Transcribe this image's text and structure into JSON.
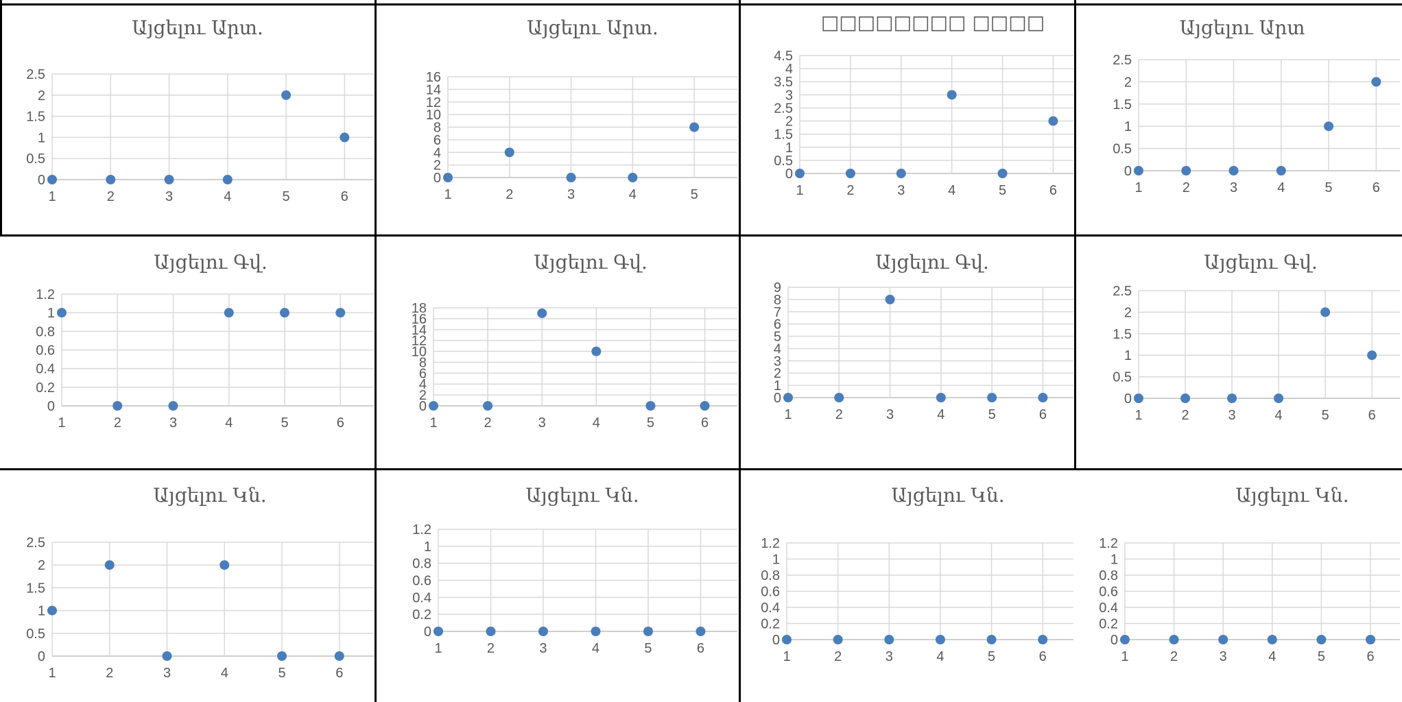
{
  "style": {
    "point_color": "#4a7ebb",
    "grid_color": "#d9d9d9",
    "axis_color": "#bfbfbf",
    "tick_text_color": "#595959",
    "title_color": "#595959",
    "border_color": "#000000"
  },
  "chart_data": [
    {
      "type": "scatter",
      "title": "Այցելու Արտ.",
      "x": [
        1,
        2,
        3,
        4,
        5,
        6
      ],
      "y": [
        0,
        0,
        0,
        0,
        2,
        1
      ],
      "xlabel": "",
      "ylabel": "",
      "xlim": [
        1,
        6.5
      ],
      "ylim": [
        0,
        2.5
      ],
      "yticks": [
        "0",
        "0.5",
        "1",
        "1.5",
        "2",
        "2.5"
      ],
      "xticks": [
        "1",
        "2",
        "3",
        "4",
        "5",
        "6"
      ],
      "grid": true
    },
    {
      "type": "scatter",
      "title": "Այցելու Արտ.",
      "x": [
        1,
        2,
        3,
        4,
        5
      ],
      "y": [
        0,
        4,
        0,
        0,
        8
      ],
      "xlabel": "",
      "ylabel": "",
      "xlim": [
        1,
        5.7
      ],
      "ylim": [
        0,
        16
      ],
      "yticks": [
        "0",
        "2",
        "4",
        "6",
        "8",
        "10",
        "12",
        "14",
        "16"
      ],
      "xticks": [
        "1",
        "2",
        "3",
        "4",
        "5"
      ],
      "grid": true
    },
    {
      "type": "scatter",
      "title": "□□□□□□□□ □□□□",
      "x": [
        1,
        2,
        3,
        4,
        5,
        6
      ],
      "y": [
        0,
        0,
        0,
        3,
        0,
        2
      ],
      "xlabel": "",
      "ylabel": "",
      "xlim": [
        1,
        6.4
      ],
      "ylim": [
        0,
        4.5
      ],
      "yticks": [
        "0",
        "0.5",
        "1",
        "1.5",
        "2",
        "2.5",
        "3",
        "3.5",
        "4",
        "4.5"
      ],
      "xticks": [
        "1",
        "2",
        "3",
        "4",
        "5",
        "6"
      ],
      "grid": true
    },
    {
      "type": "scatter",
      "title": "Այցելու Արտ",
      "x": [
        1,
        2,
        3,
        4,
        5,
        6
      ],
      "y": [
        0,
        0,
        0,
        0,
        1,
        2
      ],
      "xlabel": "",
      "ylabel": "",
      "xlim": [
        1,
        6.5
      ],
      "ylim": [
        0,
        2.5
      ],
      "yticks": [
        "0",
        "0.5",
        "1",
        "1.5",
        "2",
        "2.5"
      ],
      "xticks": [
        "1",
        "2",
        "3",
        "4",
        "5",
        "6"
      ],
      "grid": true
    },
    {
      "type": "scatter",
      "title": "Այցելու Գվ.",
      "x": [
        1,
        2,
        3,
        4,
        5,
        6
      ],
      "y": [
        1,
        0,
        0,
        1,
        1,
        1
      ],
      "xlabel": "",
      "ylabel": "",
      "xlim": [
        1,
        6.6
      ],
      "ylim": [
        0,
        1.2
      ],
      "yticks": [
        "0",
        "0.2",
        "0.4",
        "0.6",
        "0.8",
        "1",
        "1.2"
      ],
      "xticks": [
        "1",
        "2",
        "3",
        "4",
        "5",
        "6"
      ],
      "grid": true
    },
    {
      "type": "scatter",
      "title": "Այցելու Գվ.",
      "x": [
        1,
        2,
        3,
        4,
        5,
        6
      ],
      "y": [
        0,
        0,
        17,
        10,
        0,
        0
      ],
      "xlabel": "",
      "ylabel": "",
      "xlim": [
        1,
        6.6
      ],
      "ylim": [
        0,
        18
      ],
      "yticks": [
        "0",
        "2",
        "4",
        "6",
        "8",
        "10",
        "12",
        "14",
        "16",
        "18"
      ],
      "xticks": [
        "1",
        "2",
        "3",
        "4",
        "5",
        "6"
      ],
      "grid": true
    },
    {
      "type": "scatter",
      "title": "Այցելու Գվ.",
      "x": [
        1,
        2,
        3,
        4,
        5,
        6
      ],
      "y": [
        0,
        0,
        8,
        0,
        0,
        0
      ],
      "xlabel": "",
      "ylabel": "",
      "xlim": [
        1,
        6.6
      ],
      "ylim": [
        0,
        9
      ],
      "yticks": [
        "0",
        "1",
        "2",
        "3",
        "4",
        "5",
        "6",
        "7",
        "8",
        "9"
      ],
      "xticks": [
        "1",
        "2",
        "3",
        "4",
        "5",
        "6"
      ],
      "grid": true
    },
    {
      "type": "scatter",
      "title": "Այցելու Գվ.",
      "x": [
        1,
        2,
        3,
        4,
        5,
        6
      ],
      "y": [
        0,
        0,
        0,
        0,
        2,
        1
      ],
      "xlabel": "",
      "ylabel": "",
      "xlim": [
        1,
        6.6
      ],
      "ylim": [
        0,
        2.5
      ],
      "yticks": [
        "0",
        "0.5",
        "1",
        "1.5",
        "2",
        "2.5"
      ],
      "xticks": [
        "1",
        "2",
        "3",
        "4",
        "5",
        "6"
      ],
      "grid": true
    },
    {
      "type": "scatter",
      "title": "Այցելու Կն.",
      "x": [
        1,
        2,
        3,
        4,
        5,
        6
      ],
      "y": [
        1,
        2,
        0,
        2,
        0,
        0
      ],
      "xlabel": "",
      "ylabel": "",
      "xlim": [
        1,
        6.6
      ],
      "ylim": [
        0,
        2.5
      ],
      "yticks": [
        "0",
        "0.5",
        "1",
        "1.5",
        "2",
        "2.5"
      ],
      "xticks": [
        "1",
        "2",
        "3",
        "4",
        "5",
        "6"
      ],
      "grid": true
    },
    {
      "type": "scatter",
      "title": "Այցելու Կն.",
      "x": [
        1,
        2,
        3,
        4,
        5,
        6
      ],
      "y": [
        0,
        0,
        0,
        0,
        0,
        0
      ],
      "xlabel": "",
      "ylabel": "",
      "xlim": [
        1,
        6.7
      ],
      "ylim": [
        0,
        1.2
      ],
      "yticks": [
        "0",
        "0.2",
        "0.4",
        "0.6",
        "0.8",
        "1",
        "1.2"
      ],
      "xticks": [
        "1",
        "2",
        "3",
        "4",
        "5",
        "6"
      ],
      "grid": true
    },
    {
      "type": "scatter",
      "title": "Այցելու Կն.",
      "x": [
        1,
        2,
        3,
        4,
        5,
        6
      ],
      "y": [
        0,
        0,
        0,
        0,
        0,
        0
      ],
      "xlabel": "",
      "ylabel": "",
      "xlim": [
        1,
        6.6
      ],
      "ylim": [
        0,
        1.2
      ],
      "yticks": [
        "0",
        "0.2",
        "0.4",
        "0.6",
        "0.8",
        "1",
        "1.2"
      ],
      "xticks": [
        "1",
        "2",
        "3",
        "4",
        "5",
        "6"
      ],
      "grid": true
    },
    {
      "type": "scatter",
      "title": "Այցելու Կն.",
      "x": [
        1,
        2,
        3,
        4,
        5,
        6
      ],
      "y": [
        0,
        0,
        0,
        0,
        0,
        0
      ],
      "xlabel": "",
      "ylabel": "",
      "xlim": [
        1,
        6.6
      ],
      "ylim": [
        0,
        1.2
      ],
      "yticks": [
        "0",
        "0.2",
        "0.4",
        "0.6",
        "0.8",
        "1",
        "1.2"
      ],
      "xticks": [
        "1",
        "2",
        "3",
        "4",
        "5",
        "6"
      ],
      "grid": true
    }
  ]
}
